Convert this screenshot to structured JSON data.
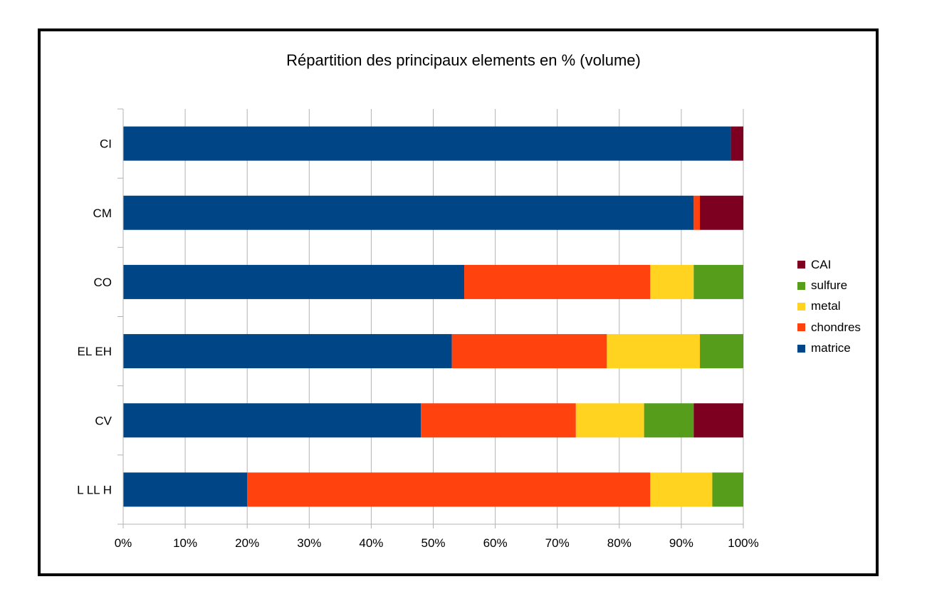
{
  "chart_data": {
    "type": "bar",
    "orientation": "horizontal",
    "stacked": "percent",
    "title": "Répartition des principaux elements en % (volume)",
    "categories": [
      "CI",
      "CM",
      "CO",
      "EL EH",
      "CV",
      "L LL H"
    ],
    "series": [
      {
        "name": "matrice",
        "color": "#004586",
        "values": [
          98,
          92,
          55,
          53,
          48,
          20
        ]
      },
      {
        "name": "chondres",
        "color": "#ff420e",
        "values": [
          0,
          1,
          30,
          25,
          25,
          65
        ]
      },
      {
        "name": "metal",
        "color": "#ffd320",
        "values": [
          0,
          0,
          7,
          15,
          11,
          10
        ]
      },
      {
        "name": "sulfure",
        "color": "#579d1c",
        "values": [
          0,
          0,
          8,
          7,
          8,
          5
        ]
      },
      {
        "name": "CAI",
        "color": "#7e0021",
        "values": [
          2,
          7,
          0,
          0,
          8,
          0
        ]
      }
    ],
    "xaxis_ticks": [
      "0%",
      "10%",
      "20%",
      "30%",
      "40%",
      "50%",
      "60%",
      "70%",
      "80%",
      "90%",
      "100%"
    ],
    "xlim": [
      0,
      100
    ],
    "grid": true,
    "legend_position": "right"
  }
}
